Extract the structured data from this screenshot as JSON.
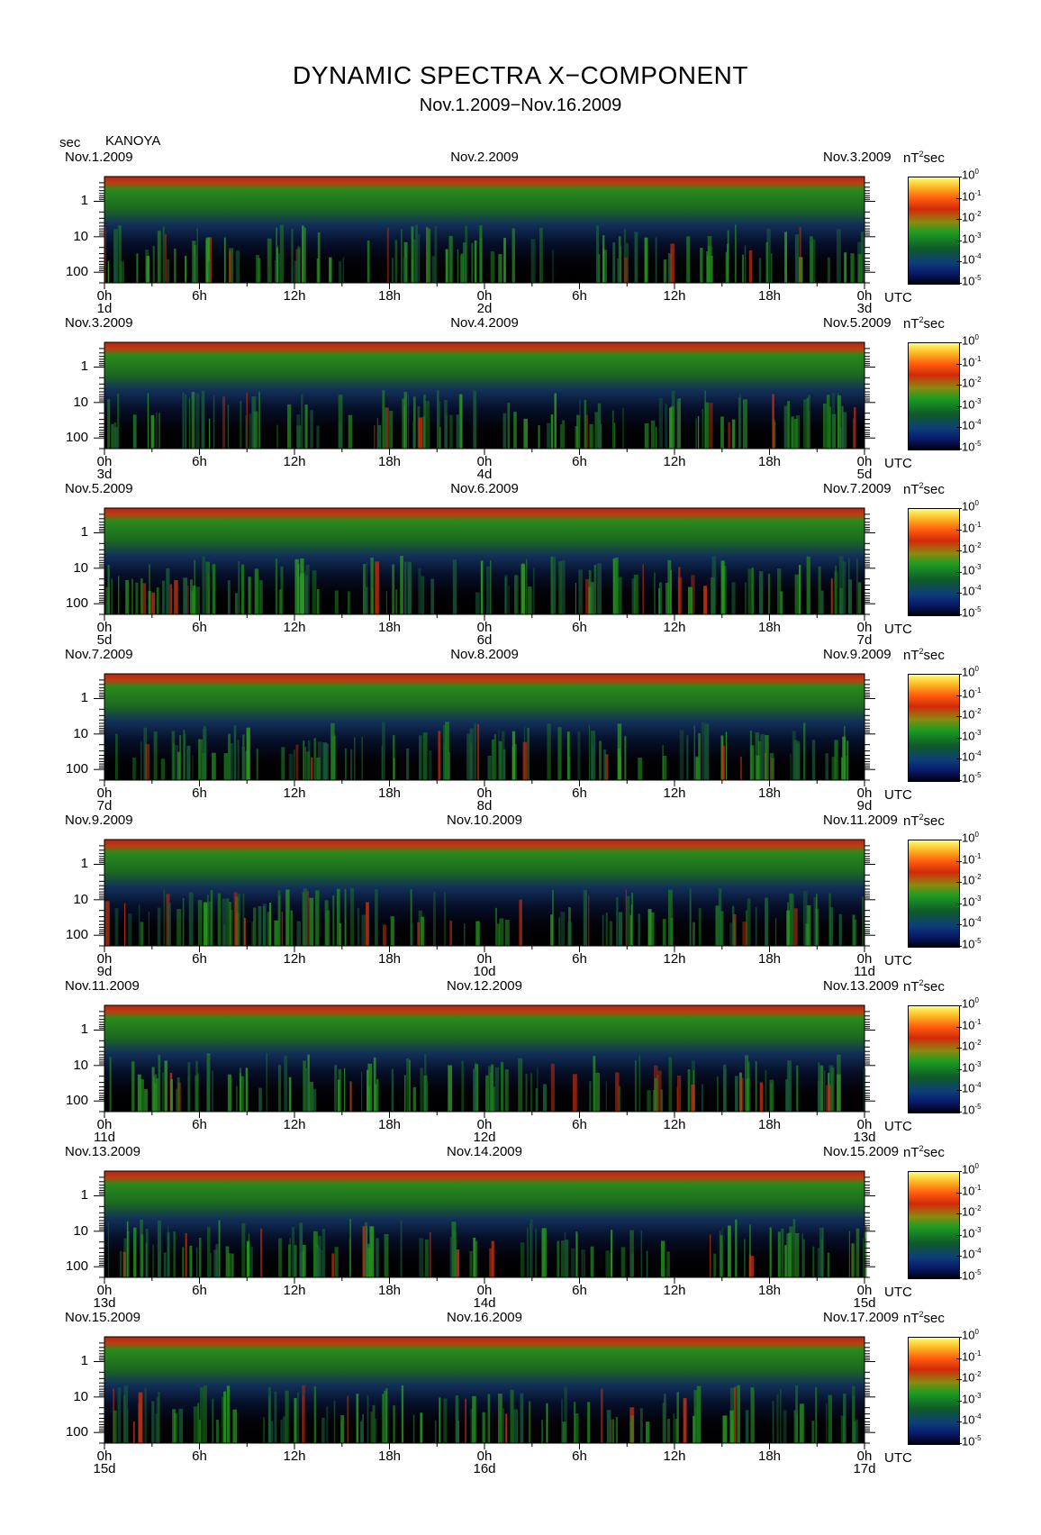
{
  "header": {
    "title": "DYNAMIC SPECTRA X−COMPONENT",
    "subtitle": "Nov.1.2009−Nov.16.2009",
    "y_unit": "sec",
    "station": "KANOYA"
  },
  "colorbar": {
    "unit_prefix": "nT",
    "unit_sup": "2",
    "unit_suffix": "sec",
    "labels": [
      {
        "base": "10",
        "exp": "0"
      },
      {
        "base": "10",
        "exp": "-1"
      },
      {
        "base": "10",
        "exp": "-2"
      },
      {
        "base": "10",
        "exp": "-3"
      },
      {
        "base": "10",
        "exp": "-4"
      },
      {
        "base": "10",
        "exp": "-5"
      }
    ]
  },
  "axis": {
    "y_ticks": [
      "1",
      "10",
      "100"
    ],
    "x_ticks": [
      "0h",
      "6h",
      "12h",
      "18h",
      "0h",
      "6h",
      "12h",
      "18h",
      "0h"
    ],
    "x_unit": "UTC"
  },
  "chart_data": {
    "type": "heatmap",
    "title": "DYNAMIC SPECTRA X−COMPONENT",
    "subtitle": "Nov.1.2009−Nov.16.2009",
    "ylabel": "sec",
    "y_scale": "log",
    "y_ticks": [
      1,
      10,
      100
    ],
    "colorbar_unit": "nT^2 sec",
    "colorbar_range": [
      1e-05,
      1
    ],
    "colorbar_scale": "log",
    "panels": [
      {
        "left": "Nov.1.2009",
        "mid": "Nov.2.2009",
        "right": "Nov.3.2009",
        "day_start": "1d",
        "day_mid": "2d",
        "day_end": "3d"
      },
      {
        "left": "Nov.3.2009",
        "mid": "Nov.4.2009",
        "right": "Nov.5.2009",
        "day_start": "3d",
        "day_mid": "4d",
        "day_end": "5d"
      },
      {
        "left": "Nov.5.2009",
        "mid": "Nov.6.2009",
        "right": "Nov.7.2009",
        "day_start": "5d",
        "day_mid": "6d",
        "day_end": "7d"
      },
      {
        "left": "Nov.7.2009",
        "mid": "Nov.8.2009",
        "right": "Nov.9.2009",
        "day_start": "7d",
        "day_mid": "8d",
        "day_end": "9d"
      },
      {
        "left": "Nov.9.2009",
        "mid": "Nov.10.2009",
        "right": "Nov.11.2009",
        "day_start": "9d",
        "day_mid": "10d",
        "day_end": "11d"
      },
      {
        "left": "Nov.11.2009",
        "mid": "Nov.12.2009",
        "right": "Nov.13.2009",
        "day_start": "11d",
        "day_mid": "12d",
        "day_end": "13d"
      },
      {
        "left": "Nov.13.2009",
        "mid": "Nov.14.2009",
        "right": "Nov.15.2009",
        "day_start": "13d",
        "day_mid": "14d",
        "day_end": "15d"
      },
      {
        "left": "Nov.15.2009",
        "mid": "Nov.16.2009",
        "right": "Nov.17.2009",
        "day_start": "15d",
        "day_mid": "16d",
        "day_end": "17d"
      }
    ]
  }
}
